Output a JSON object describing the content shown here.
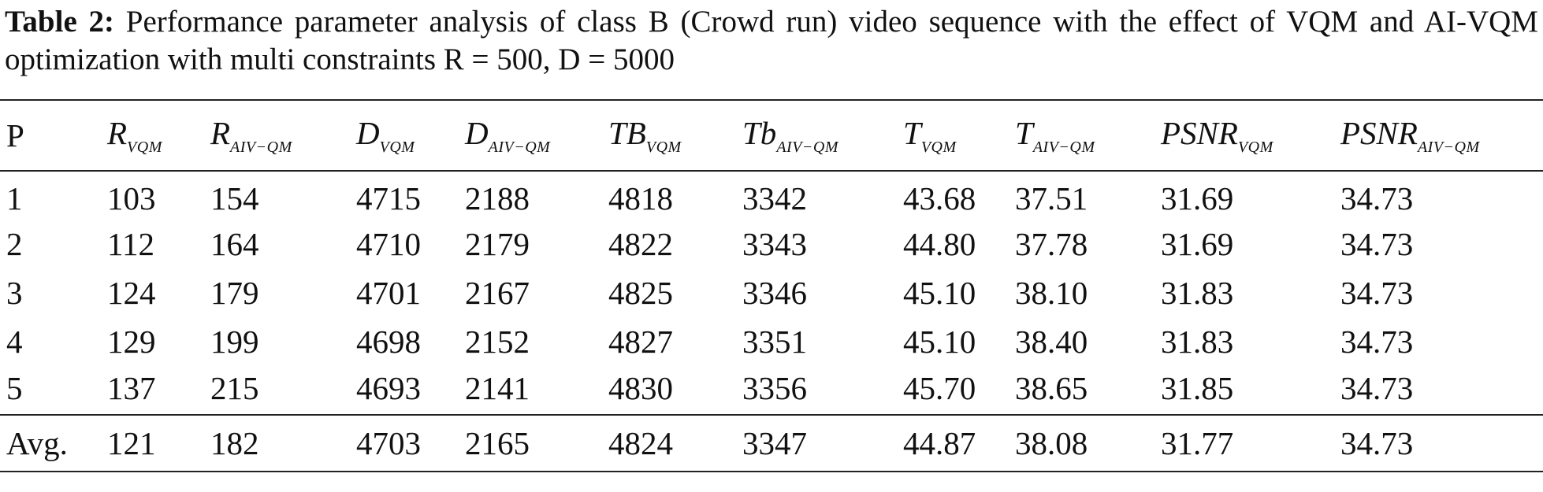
{
  "caption": {
    "label": "Table 2:",
    "text": " Performance parameter analysis of class B (Crowd run) video sequence with the effect of VQM and AI-VQM optimization with multi constraints R = 500, D = 5000"
  },
  "table": {
    "header": [
      {
        "base": "P",
        "sub": ""
      },
      {
        "base": "R",
        "sub": "VQM"
      },
      {
        "base": "R",
        "sub": "AIV−QM"
      },
      {
        "base": "D",
        "sub": "VQM"
      },
      {
        "base": "D",
        "sub": "AIV−QM"
      },
      {
        "base": "TB",
        "sub": "VQM"
      },
      {
        "base": "Tb",
        "sub": "AIV−QM"
      },
      {
        "base": "T",
        "sub": "VQM"
      },
      {
        "base": "T",
        "sub": "AIV−QM"
      },
      {
        "base": "PSNR",
        "sub": "VQM"
      },
      {
        "base": "PSNR",
        "sub": "AIV−QM"
      }
    ],
    "rows": [
      [
        "1",
        "103",
        "154",
        "4715",
        "2188",
        "4818",
        "3342",
        "43.68",
        "37.51",
        "31.69",
        "34.73"
      ],
      [
        "2",
        "112",
        "164",
        "4710",
        "2179",
        "4822",
        "3343",
        "44.80",
        "37.78",
        "31.69",
        "34.73"
      ],
      [
        "3",
        "124",
        "179",
        "4701",
        "2167",
        "4825",
        "3346",
        "45.10",
        "38.10",
        "31.83",
        "34.73"
      ],
      [
        "4",
        "129",
        "199",
        "4698",
        "2152",
        "4827",
        "3351",
        "45.10",
        "38.40",
        "31.83",
        "34.73"
      ],
      [
        "5",
        "137",
        "215",
        "4693",
        "2141",
        "4830",
        "3356",
        "45.70",
        "38.65",
        "31.85",
        "34.73"
      ]
    ],
    "average": [
      "Avg.",
      "121",
      "182",
      "4703",
      "2165",
      "4824",
      "3347",
      "44.87",
      "38.08",
      "31.77",
      "34.73"
    ]
  }
}
